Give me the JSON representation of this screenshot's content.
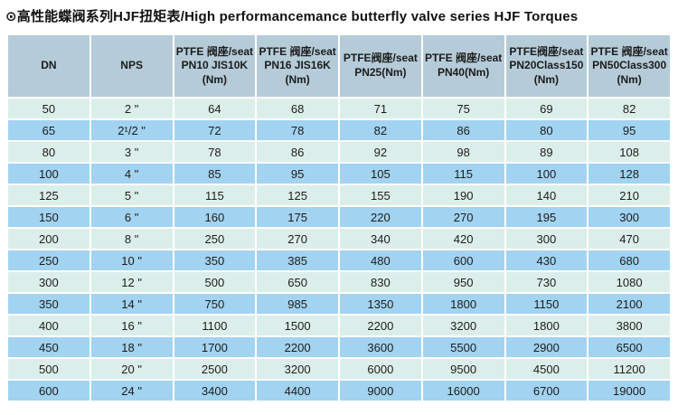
{
  "page": {
    "title": "⊙高性能蝶阀系列HJF扭矩表/High performancemance butterfly valve series HJF Torques"
  },
  "table": {
    "columns": [
      "DN",
      "NPS",
      "PTFE 阀座/seat\nPN10 JIS10K\n(Nm)",
      "PTFE 阀座/seat\nPN16 JIS16K\n(Nm)",
      "PTFE阀座/seat\nPN25(Nm)",
      "PTFE 阀座/seat\nPN40(Nm)",
      "PTFE阀座/seat\nPN20Class150\n(Nm)",
      "PTFE 阀座/seat\nPN50Class300\n(Nm)"
    ],
    "rows": [
      [
        "50",
        "2 \"",
        "64",
        "68",
        "71",
        "75",
        "69",
        "82"
      ],
      [
        "65",
        "2¹/2 \"",
        "72",
        "78",
        "82",
        "86",
        "80",
        "95"
      ],
      [
        "80",
        "3 \"",
        "78",
        "86",
        "92",
        "98",
        "89",
        "108"
      ],
      [
        "100",
        "4 \"",
        "85",
        "95",
        "105",
        "115",
        "100",
        "128"
      ],
      [
        "125",
        "5 \"",
        "115",
        "125",
        "155",
        "190",
        "140",
        "210"
      ],
      [
        "150",
        "6 \"",
        "160",
        "175",
        "220",
        "270",
        "195",
        "300"
      ],
      [
        "200",
        "8 \"",
        "250",
        "270",
        "340",
        "420",
        "300",
        "470"
      ],
      [
        "250",
        "10 \"",
        "350",
        "385",
        "480",
        "600",
        "430",
        "680"
      ],
      [
        "300",
        "12 \"",
        "500",
        "650",
        "830",
        "950",
        "730",
        "1080"
      ],
      [
        "350",
        "14 \"",
        "750",
        "985",
        "1350",
        "1800",
        "1150",
        "2100"
      ],
      [
        "400",
        "16 \"",
        "1100",
        "1500",
        "2200",
        "3200",
        "1800",
        "3800"
      ],
      [
        "450",
        "18 \"",
        "1700",
        "2200",
        "3600",
        "5500",
        "2900",
        "6500"
      ],
      [
        "500",
        "20 \"",
        "2500",
        "3200",
        "6000",
        "9500",
        "4500",
        "11200"
      ],
      [
        "600",
        "24 \"",
        "3400",
        "4400",
        "9000",
        "16000",
        "6700",
        "19000"
      ]
    ],
    "colors": {
      "header_bg": "#b5ccd8",
      "row_light_bg": "#dceee9",
      "row_blue_bg": "#a2d3f0",
      "text": "#1c1c1c"
    }
  }
}
